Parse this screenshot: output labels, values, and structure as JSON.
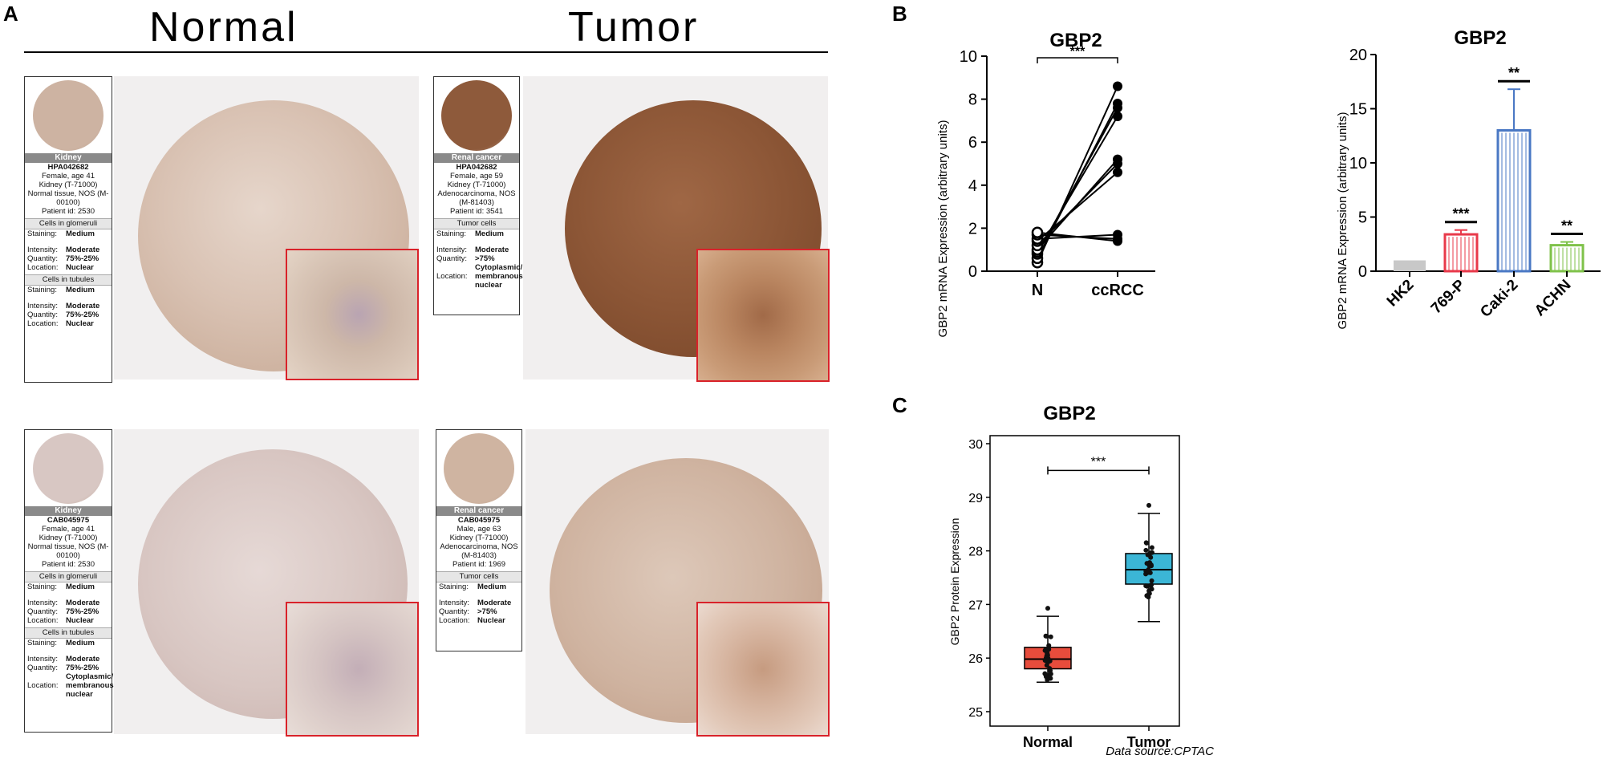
{
  "panel_labels": {
    "a": "A",
    "b": "B",
    "c": "C"
  },
  "panel_a": {
    "col_normal": "Normal",
    "col_tumor": "Tumor",
    "cards": [
      {
        "tissue": "Kidney",
        "antibody": "HPA042682",
        "lines": [
          "Female, age 41",
          "Kidney (T-71000)",
          "Normal tissue, NOS (M-",
          "00100)",
          "Patient id: 2530"
        ],
        "sections": [
          {
            "title": "Cells in glomeruli",
            "rows": [
              [
                "Staining:",
                "Medium"
              ],
              [
                "",
                ""
              ],
              [
                "Intensity:",
                "Moderate"
              ],
              [
                "Quantity:",
                "75%-25%"
              ],
              [
                "Location:",
                "Nuclear"
              ]
            ]
          },
          {
            "title": "Cells in tubules",
            "rows": [
              [
                "Staining:",
                "Medium"
              ],
              [
                "",
                ""
              ],
              [
                "Intensity:",
                "Moderate"
              ],
              [
                "Quantity:",
                "75%-25%"
              ],
              [
                "Location:",
                "Nuclear"
              ]
            ]
          }
        ]
      },
      {
        "tissue": "Renal cancer",
        "antibody": "HPA042682",
        "lines": [
          "Female, age 59",
          "Kidney (T-71000)",
          "Adenocarcinoma, NOS",
          "(M-81403)",
          "Patient id: 3541"
        ],
        "sections": [
          {
            "title": "Tumor cells",
            "rows": [
              [
                "Staining:",
                "Medium"
              ],
              [
                "",
                ""
              ],
              [
                "Intensity:",
                "Moderate"
              ],
              [
                "Quantity:",
                ">75%"
              ],
              [
                "",
                "Cytoplasmic/"
              ],
              [
                "Location:",
                "membranous"
              ],
              [
                "",
                "nuclear"
              ]
            ]
          }
        ]
      },
      {
        "tissue": "Kidney",
        "antibody": "CAB045975",
        "lines": [
          "Female, age 41",
          "Kidney (T-71000)",
          "Normal tissue, NOS (M-",
          "00100)",
          "Patient id: 2530"
        ],
        "sections": [
          {
            "title": "Cells in glomeruli",
            "rows": [
              [
                "Staining:",
                "Medium"
              ],
              [
                "",
                ""
              ],
              [
                "Intensity:",
                "Moderate"
              ],
              [
                "Quantity:",
                "75%-25%"
              ],
              [
                "Location:",
                "Nuclear"
              ]
            ]
          },
          {
            "title": "Cells in tubules",
            "rows": [
              [
                "Staining:",
                "Medium"
              ],
              [
                "",
                ""
              ],
              [
                "Intensity:",
                "Moderate"
              ],
              [
                "Quantity:",
                "75%-25%"
              ],
              [
                "",
                "Cytoplasmic/"
              ],
              [
                "Location:",
                "membranous"
              ],
              [
                "",
                "nuclear"
              ]
            ]
          }
        ]
      },
      {
        "tissue": "Renal cancer",
        "antibody": "CAB045975",
        "lines": [
          "Male, age 63",
          "Kidney (T-71000)",
          "Adenocarcinoma, NOS",
          "(M-81403)",
          "Patient id: 1969"
        ],
        "sections": [
          {
            "title": "Tumor cells",
            "rows": [
              [
                "Staining:",
                "Medium"
              ],
              [
                "",
                ""
              ],
              [
                "Intensity:",
                "Moderate"
              ],
              [
                "Quantity:",
                ">75%"
              ],
              [
                "Location:",
                "Nuclear"
              ]
            ]
          }
        ]
      }
    ]
  },
  "chart_data": [
    {
      "type": "line",
      "title": "GBP2",
      "ylabel": "GBP2 mRNA Expression (arbitrary units)",
      "categories": [
        "N",
        "ccRCC"
      ],
      "ylim": [
        0,
        10
      ],
      "yticks": [
        0,
        2,
        4,
        6,
        8,
        10
      ],
      "pairs": [
        [
          0.4,
          8.6
        ],
        [
          0.6,
          7.8
        ],
        [
          0.8,
          7.6
        ],
        [
          0.9,
          7.2
        ],
        [
          1.0,
          5.2
        ],
        [
          1.2,
          5.0
        ],
        [
          1.4,
          4.6
        ],
        [
          1.5,
          1.7
        ],
        [
          1.7,
          1.5
        ],
        [
          1.8,
          1.4
        ]
      ],
      "significance": "***"
    },
    {
      "type": "bar",
      "title": "GBP2",
      "ylabel": "GBP2 mRNA Expression (arbitrary units)",
      "categories": [
        "HK2",
        "769-P",
        "Caki-2",
        "ACHN"
      ],
      "values": [
        1.0,
        3.4,
        13.0,
        2.4
      ],
      "errors": [
        0,
        0.4,
        3.8,
        0.3
      ],
      "colors": [
        "#c8c8c8",
        "#e8394a",
        "#4a78c4",
        "#7fc24a"
      ],
      "ylim": [
        0,
        20
      ],
      "yticks": [
        0,
        5,
        10,
        15,
        20
      ],
      "significance": [
        "",
        "***",
        "**",
        "**"
      ]
    },
    {
      "type": "box",
      "title": "GBP2",
      "ylabel": "GBP2 Protein Expression",
      "categories": [
        "Normal",
        "Tumor"
      ],
      "ylim": [
        25,
        30
      ],
      "yticks": [
        25,
        26,
        27,
        28,
        29,
        30
      ],
      "boxes": [
        {
          "name": "Normal",
          "min": 25.55,
          "q1": 25.8,
          "median": 25.98,
          "q3": 26.2,
          "max": 26.78,
          "color": "#e74c3c"
        },
        {
          "name": "Tumor",
          "min": 26.68,
          "q1": 27.38,
          "median": 27.65,
          "q3": 27.95,
          "max": 28.7,
          "color": "#3bb6d6"
        }
      ],
      "significance": "***",
      "source": "Data source:CPTAC"
    }
  ]
}
